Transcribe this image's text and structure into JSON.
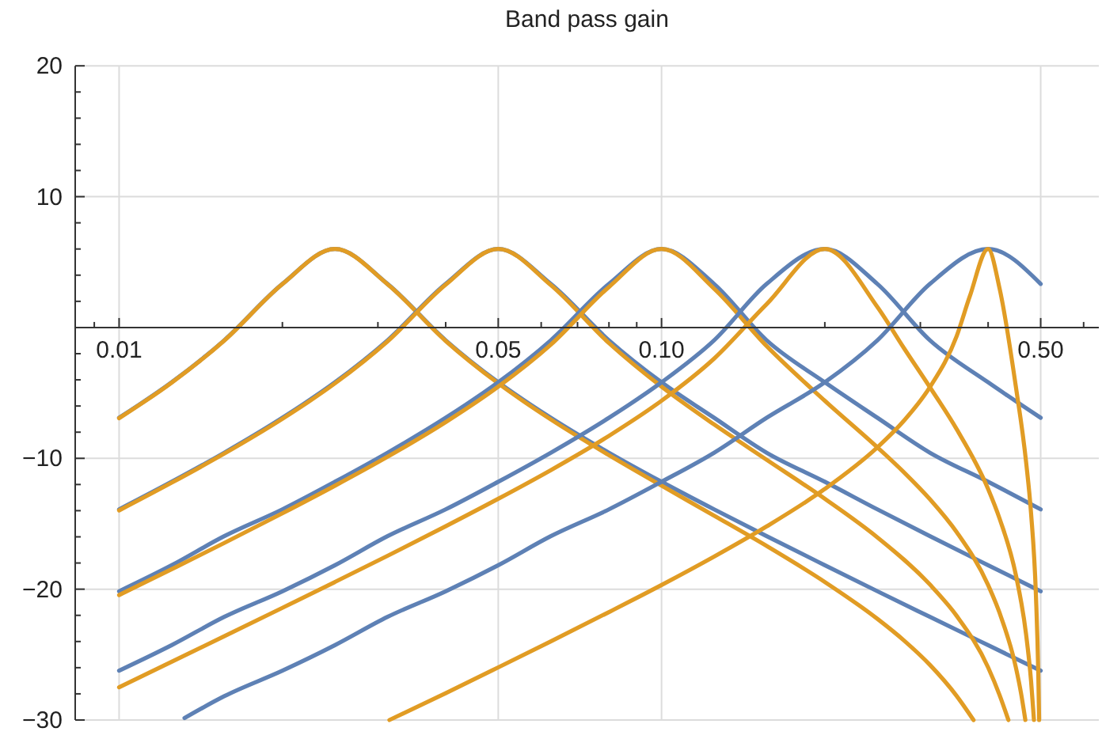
{
  "chart_data": {
    "type": "line",
    "title": "Band pass gain",
    "log": "x",
    "grid": true,
    "xlim": [
      0.0083,
      0.64
    ],
    "ylim": [
      -30,
      20
    ],
    "xticks": [
      {
        "value": 0.009,
        "label": null
      },
      0.01,
      {
        "value": 0.02,
        "label": null
      },
      {
        "value": 0.03,
        "label": null
      },
      {
        "value": 0.04,
        "label": null
      },
      0.05,
      {
        "value": 0.06,
        "label": null
      },
      {
        "value": 0.07,
        "label": null
      },
      {
        "value": 0.08,
        "label": null
      },
      {
        "value": 0.09,
        "label": null
      },
      {
        "value": 0.1,
        "label": "0.10"
      },
      {
        "value": 0.2,
        "label": null
      },
      {
        "value": 0.3,
        "label": null
      },
      {
        "value": 0.4,
        "label": null
      },
      {
        "value": 0.5,
        "label": "0.50"
      },
      {
        "value": 0.6,
        "label": null
      }
    ],
    "yticks": [
      -30,
      {
        "value": -28,
        "label": null
      },
      {
        "value": -26,
        "label": null
      },
      {
        "value": -24,
        "label": null
      },
      {
        "value": -22,
        "label": null
      },
      -20,
      {
        "value": -18,
        "label": null
      },
      {
        "value": -16,
        "label": null
      },
      {
        "value": -14,
        "label": null
      },
      {
        "value": -12,
        "label": null
      },
      -10,
      {
        "value": -8,
        "label": null
      },
      {
        "value": -6,
        "label": null
      },
      {
        "value": -4,
        "label": null
      },
      {
        "value": -2,
        "label": null
      },
      {
        "value": 2,
        "label": null
      },
      {
        "value": 4,
        "label": null
      },
      {
        "value": 6,
        "label": null
      },
      {
        "value": 8,
        "label": null
      },
      10,
      {
        "value": 12,
        "label": null
      },
      {
        "value": 14,
        "label": null
      },
      {
        "value": 16,
        "label": null
      },
      {
        "value": 18,
        "label": null
      },
      20
    ],
    "series": [
      {
        "color": "#5e81b5",
        "x": [
          0.01,
          0.0125,
          0.015625,
          0.02,
          0.025,
          0.03125,
          0.04,
          0.05,
          0.0625,
          0.08,
          0.1,
          0.125,
          0.15625,
          0.2,
          0.25,
          0.3125,
          0.4,
          0.5
        ],
        "values": [
          -6.9,
          -4.19,
          -0.98,
          3.33,
          6,
          3.33,
          -0.98,
          -4.19,
          -6.9,
          -9.57,
          -11.79,
          -13.9,
          -15.95,
          -18.17,
          -20.16,
          -22.12,
          -24.28,
          -26.23
        ]
      },
      {
        "color": "#e19c24",
        "x": [
          0.01,
          0.0125,
          0.015625,
          0.02,
          0.025,
          0.03125,
          0.04,
          0.05,
          0.0625,
          0.08,
          0.1,
          0.125,
          0.15625,
          0.2,
          0.25,
          0.28,
          0.3125,
          0.35,
          0.376
        ],
        "values": [
          -6.93,
          -4.21,
          -1.0,
          3.32,
          6,
          3.31,
          -1.03,
          -4.27,
          -7.03,
          -9.76,
          -12.09,
          -14.38,
          -16.7,
          -19.45,
          -22.27,
          -23.93,
          -25.79,
          -28.16,
          -30
        ]
      },
      {
        "color": "#5e81b5",
        "x": [
          0.01,
          0.0125,
          0.015625,
          0.02,
          0.025,
          0.03125,
          0.04,
          0.05,
          0.0625,
          0.08,
          0.1,
          0.125,
          0.15625,
          0.2,
          0.25,
          0.3125,
          0.4,
          0.5
        ],
        "values": [
          -13.9,
          -11.79,
          -9.57,
          -6.9,
          -4.19,
          -0.98,
          3.33,
          6,
          3.33,
          -0.98,
          -4.19,
          -6.9,
          -9.57,
          -11.79,
          -13.9,
          -15.95,
          -18.17,
          -20.16
        ]
      },
      {
        "color": "#e19c24",
        "x": [
          0.01,
          0.0125,
          0.015625,
          0.02,
          0.025,
          0.03125,
          0.04,
          0.05,
          0.0625,
          0.08,
          0.1,
          0.125,
          0.15625,
          0.2,
          0.25,
          0.3125,
          0.35,
          0.4,
          0.42,
          0.436
        ],
        "values": [
          -13.98,
          -11.86,
          -9.64,
          -6.98,
          -4.27,
          -1.06,
          3.27,
          6,
          3.24,
          -1.19,
          -4.52,
          -7.41,
          -10.11,
          -13.09,
          -16.04,
          -19.65,
          -22.04,
          -25.98,
          -28.1,
          -30
        ]
      },
      {
        "color": "#5e81b5",
        "x": [
          0.01,
          0.0125,
          0.015625,
          0.02,
          0.025,
          0.03125,
          0.04,
          0.05,
          0.0625,
          0.08,
          0.1,
          0.125,
          0.15625,
          0.2,
          0.25,
          0.3125,
          0.4,
          0.5
        ],
        "values": [
          -20.16,
          -18.17,
          -15.95,
          -13.9,
          -11.79,
          -9.57,
          -6.9,
          -4.19,
          -0.98,
          3.33,
          6,
          3.33,
          -0.98,
          -4.19,
          -6.9,
          -9.57,
          -11.79,
          -13.9
        ]
      },
      {
        "color": "#e19c24",
        "x": [
          0.01,
          0.0125,
          0.015625,
          0.02,
          0.025,
          0.03125,
          0.04,
          0.05,
          0.0625,
          0.08,
          0.1,
          0.125,
          0.15625,
          0.2,
          0.25,
          0.28,
          0.3125,
          0.35,
          0.4,
          0.42,
          0.45,
          0.46,
          0.4685
        ],
        "values": [
          -20.45,
          -18.47,
          -16.47,
          -14.2,
          -12.09,
          -9.88,
          -7.23,
          -4.52,
          -1.31,
          3.1,
          6,
          2.97,
          -1.42,
          -5.6,
          -9.16,
          -11.08,
          -13.13,
          -15.64,
          -19.68,
          -21.82,
          -25.98,
          -27.95,
          -30
        ]
      },
      {
        "color": "#5e81b5",
        "x": [
          0.01,
          0.0125,
          0.015625,
          0.02,
          0.025,
          0.03125,
          0.04,
          0.05,
          0.0625,
          0.08,
          0.1,
          0.125,
          0.15625,
          0.2,
          0.25,
          0.3125,
          0.4,
          0.5
        ],
        "values": [
          -26.23,
          -24.28,
          -22.12,
          -20.16,
          -18.17,
          -15.95,
          -13.9,
          -11.79,
          -9.57,
          -6.9,
          -4.19,
          -0.98,
          3.33,
          6,
          3.33,
          -0.98,
          -4.19,
          -6.9
        ]
      },
      {
        "color": "#e19c24",
        "x": [
          0.01,
          0.0125,
          0.015625,
          0.02,
          0.025,
          0.03125,
          0.04,
          0.05,
          0.0625,
          0.08,
          0.1,
          0.125,
          0.15625,
          0.2,
          0.25,
          0.28,
          0.3125,
          0.35,
          0.4,
          0.42,
          0.45,
          0.47,
          0.48,
          0.485,
          0.4859
        ],
        "values": [
          -27.5,
          -25.55,
          -23.6,
          -21.43,
          -19.45,
          -17.45,
          -15.19,
          -13.09,
          -10.9,
          -8.28,
          -5.6,
          -2.38,
          1.79,
          6,
          1.57,
          -1.59,
          -4.57,
          -7.77,
          -12.34,
          -14.61,
          -18.91,
          -23.46,
          -27.02,
          -29.53,
          -30
        ]
      },
      {
        "color": "#5e81b5",
        "x": [
          0.0132,
          0.015625,
          0.02,
          0.025,
          0.03125,
          0.04,
          0.05,
          0.0625,
          0.08,
          0.1,
          0.125,
          0.15625,
          0.2,
          0.25,
          0.3125,
          0.4,
          0.5
        ],
        "values": [
          -29.85,
          -28.18,
          -26.23,
          -24.28,
          -22.12,
          -20.16,
          -18.17,
          -15.95,
          -13.9,
          -11.79,
          -9.57,
          -6.9,
          -4.19,
          -0.98,
          3.33,
          6,
          3.33
        ]
      },
      {
        "color": "#e19c24",
        "x": [
          0.0315,
          0.04,
          0.05,
          0.0625,
          0.08,
          0.1,
          0.125,
          0.15625,
          0.2,
          0.25,
          0.28,
          0.3125,
          0.35,
          0.37,
          0.4,
          0.42,
          0.45,
          0.47,
          0.48,
          0.49,
          0.495,
          0.4967
        ],
        "values": [
          -30,
          -27.95,
          -25.98,
          -23.99,
          -21.75,
          -19.68,
          -17.51,
          -15.2,
          -12.34,
          -9.16,
          -7.11,
          -4.55,
          -0.66,
          2.37,
          6,
          2.97,
          -4.52,
          -10.29,
          -14.2,
          -20.45,
          -26.53,
          -30
        ]
      }
    ]
  }
}
